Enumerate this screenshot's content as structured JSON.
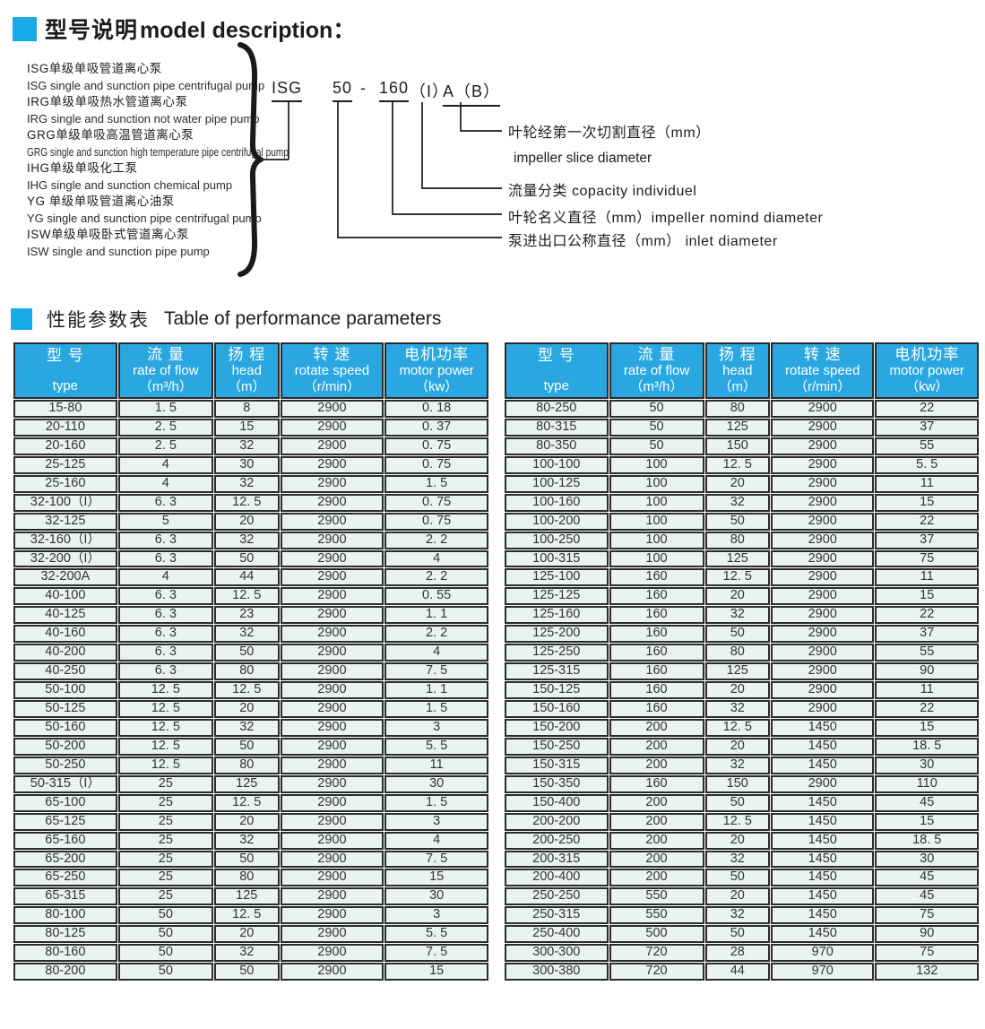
{
  "colors": {
    "accent": "#18aae4",
    "table_header_bg": "#2aa7e0",
    "table_cell_bg": "#e9f4ef",
    "table_border": "#2b2b2b",
    "text": "#1d1d1d"
  },
  "section1": {
    "title_cn": "型号说明",
    "title_en": "model description：",
    "pump_types": [
      {
        "cn": "ISG单级单吸管道离心泵",
        "en": "ISG single and sunction pipe centrifugal pump"
      },
      {
        "cn": "IRG单级单吸热水管道离心泵",
        "en": "IRG single and sunction not water pipe pump"
      },
      {
        "cn": "GRG单级单吸高温管道离心泵",
        "en": "GRG single and sunction high temperature pipe centrifugal pump"
      },
      {
        "cn": "IHG单级单吸化工泵",
        "en": "IHG single and sunction chemical pump"
      },
      {
        "cn": "YG 单级单吸管道离心油泵",
        "en": "YG  single and sunction pipe centrifugal pump"
      },
      {
        "cn": "ISW单级单吸卧式管道离心泵",
        "en": "ISW single and sunction pipe pump"
      }
    ],
    "model_code": {
      "series": "ISG",
      "inlet": "50",
      "dash": "-",
      "diameter": "160",
      "capacity": "（I）",
      "slice": "A（B）"
    },
    "callouts": [
      "叶轮经第一次切割直径（mm）",
      "impeller  slice  diameter",
      "流量分类    copacity individuel",
      "叶轮名义直径（mm）impeller nomind diameter",
      "泵进出口公称直径（mm） inlet  diameter"
    ]
  },
  "section2": {
    "title_cn": "性能参数表",
    "title_en": "Table of performance parameters",
    "columns": [
      {
        "cn": "型 号",
        "en": "type",
        "unit": ""
      },
      {
        "cn": "流 量",
        "en": "rate of flow",
        "unit": "（m³/h）"
      },
      {
        "cn": "扬 程",
        "en": "head",
        "unit": "（m）"
      },
      {
        "cn": "转 速",
        "en": "rotate speed",
        "unit": "（r/min）"
      },
      {
        "cn": "电机功率",
        "en": "motor power",
        "unit": "（kw）"
      }
    ],
    "left_rows": [
      [
        "15-80",
        "1. 5",
        "8",
        "2900",
        "0. 18"
      ],
      [
        "20-110",
        "2. 5",
        "15",
        "2900",
        "0. 37"
      ],
      [
        "20-160",
        "2. 5",
        "32",
        "2900",
        "0. 75"
      ],
      [
        "25-125",
        "4",
        "30",
        "2900",
        "0. 75"
      ],
      [
        "25-160",
        "4",
        "32",
        "2900",
        "1. 5"
      ],
      [
        "32-100（I）",
        "6. 3",
        "12. 5",
        "2900",
        "0. 75"
      ],
      [
        "32-125",
        "5",
        "20",
        "2900",
        "0. 75"
      ],
      [
        "32-160（I）",
        "6. 3",
        "32",
        "2900",
        "2. 2"
      ],
      [
        "32-200（I）",
        "6. 3",
        "50",
        "2900",
        "4"
      ],
      [
        "32-200A",
        "4",
        "44",
        "2900",
        "2. 2"
      ],
      [
        "40-100",
        "6. 3",
        "12. 5",
        "2900",
        "0. 55"
      ],
      [
        "40-125",
        "6. 3",
        "23",
        "2900",
        "1. 1"
      ],
      [
        "40-160",
        "6. 3",
        "32",
        "2900",
        "2. 2"
      ],
      [
        "40-200",
        "6. 3",
        "50",
        "2900",
        "4"
      ],
      [
        "40-250",
        "6. 3",
        "80",
        "2900",
        "7. 5"
      ],
      [
        "50-100",
        "12. 5",
        "12. 5",
        "2900",
        "1. 1"
      ],
      [
        "50-125",
        "12. 5",
        "20",
        "2900",
        "1. 5"
      ],
      [
        "50-160",
        "12. 5",
        "32",
        "2900",
        "3"
      ],
      [
        "50-200",
        "12. 5",
        "50",
        "2900",
        "5. 5"
      ],
      [
        "50-250",
        "12. 5",
        "80",
        "2900",
        "11"
      ],
      [
        "50-315（I）",
        "25",
        "125",
        "2900",
        "30"
      ],
      [
        "65-100",
        "25",
        "12. 5",
        "2900",
        "1. 5"
      ],
      [
        "65-125",
        "25",
        "20",
        "2900",
        "3"
      ],
      [
        "65-160",
        "25",
        "32",
        "2900",
        "4"
      ],
      [
        "65-200",
        "25",
        "50",
        "2900",
        "7. 5"
      ],
      [
        "65-250",
        "25",
        "80",
        "2900",
        "15"
      ],
      [
        "65-315",
        "25",
        "125",
        "2900",
        "30"
      ],
      [
        "80-100",
        "50",
        "12. 5",
        "2900",
        "3"
      ],
      [
        "80-125",
        "50",
        "20",
        "2900",
        "5. 5"
      ],
      [
        "80-160",
        "50",
        "32",
        "2900",
        "7. 5"
      ],
      [
        "80-200",
        "50",
        "50",
        "2900",
        "15"
      ]
    ],
    "right_rows": [
      [
        "80-250",
        "50",
        "80",
        "2900",
        "22"
      ],
      [
        "80-315",
        "50",
        "125",
        "2900",
        "37"
      ],
      [
        "80-350",
        "50",
        "150",
        "2900",
        "55"
      ],
      [
        "100-100",
        "100",
        "12. 5",
        "2900",
        "5. 5"
      ],
      [
        "100-125",
        "100",
        "20",
        "2900",
        "11"
      ],
      [
        "100-160",
        "100",
        "32",
        "2900",
        "15"
      ],
      [
        "100-200",
        "100",
        "50",
        "2900",
        "22"
      ],
      [
        "100-250",
        "100",
        "80",
        "2900",
        "37"
      ],
      [
        "100-315",
        "100",
        "125",
        "2900",
        "75"
      ],
      [
        "125-100",
        "160",
        "12. 5",
        "2900",
        "11"
      ],
      [
        "125-125",
        "160",
        "20",
        "2900",
        "15"
      ],
      [
        "125-160",
        "160",
        "32",
        "2900",
        "22"
      ],
      [
        "125-200",
        "160",
        "50",
        "2900",
        "37"
      ],
      [
        "125-250",
        "160",
        "80",
        "2900",
        "55"
      ],
      [
        "125-315",
        "160",
        "125",
        "2900",
        "90"
      ],
      [
        "150-125",
        "160",
        "20",
        "2900",
        "11"
      ],
      [
        "150-160",
        "160",
        "32",
        "2900",
        "22"
      ],
      [
        "150-200",
        "200",
        "12. 5",
        "1450",
        "15"
      ],
      [
        "150-250",
        "200",
        "20",
        "1450",
        "18. 5"
      ],
      [
        "150-315",
        "200",
        "32",
        "1450",
        "30"
      ],
      [
        "150-350",
        "160",
        "150",
        "2900",
        "110"
      ],
      [
        "150-400",
        "200",
        "50",
        "1450",
        "45"
      ],
      [
        "200-200",
        "200",
        "12. 5",
        "1450",
        "15"
      ],
      [
        "200-250",
        "200",
        "20",
        "1450",
        "18. 5"
      ],
      [
        "200-315",
        "200",
        "32",
        "1450",
        "30"
      ],
      [
        "200-400",
        "200",
        "50",
        "1450",
        "45"
      ],
      [
        "250-250",
        "550",
        "20",
        "1450",
        "45"
      ],
      [
        "250-315",
        "550",
        "32",
        "1450",
        "75"
      ],
      [
        "250-400",
        "500",
        "50",
        "1450",
        "90"
      ],
      [
        "300-300",
        "720",
        "28",
        "970",
        "75"
      ],
      [
        "300-380",
        "720",
        "44",
        "970",
        "132"
      ]
    ]
  }
}
